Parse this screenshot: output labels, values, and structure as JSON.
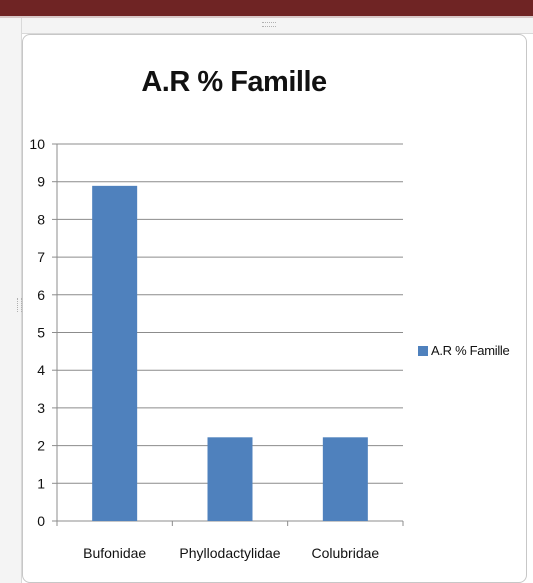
{
  "chart_data": {
    "type": "bar",
    "title": "A.R % Famille",
    "categories": [
      "Bufonidae",
      "Phyllodactylidae",
      "Colubridae"
    ],
    "series": [
      {
        "name": "A.R % Famille",
        "values": [
          8.89,
          2.22,
          2.22
        ]
      }
    ],
    "ylim": [
      0,
      10
    ],
    "yticks": [
      "0",
      "1",
      "2",
      "3",
      "4",
      "5",
      "6",
      "7",
      "8",
      "9",
      "10"
    ],
    "grid": true,
    "legend_position": "right",
    "colors": {
      "bar": "#4f81bd",
      "grid": "#8c8c8c",
      "axis": "#8c8c8c"
    }
  }
}
